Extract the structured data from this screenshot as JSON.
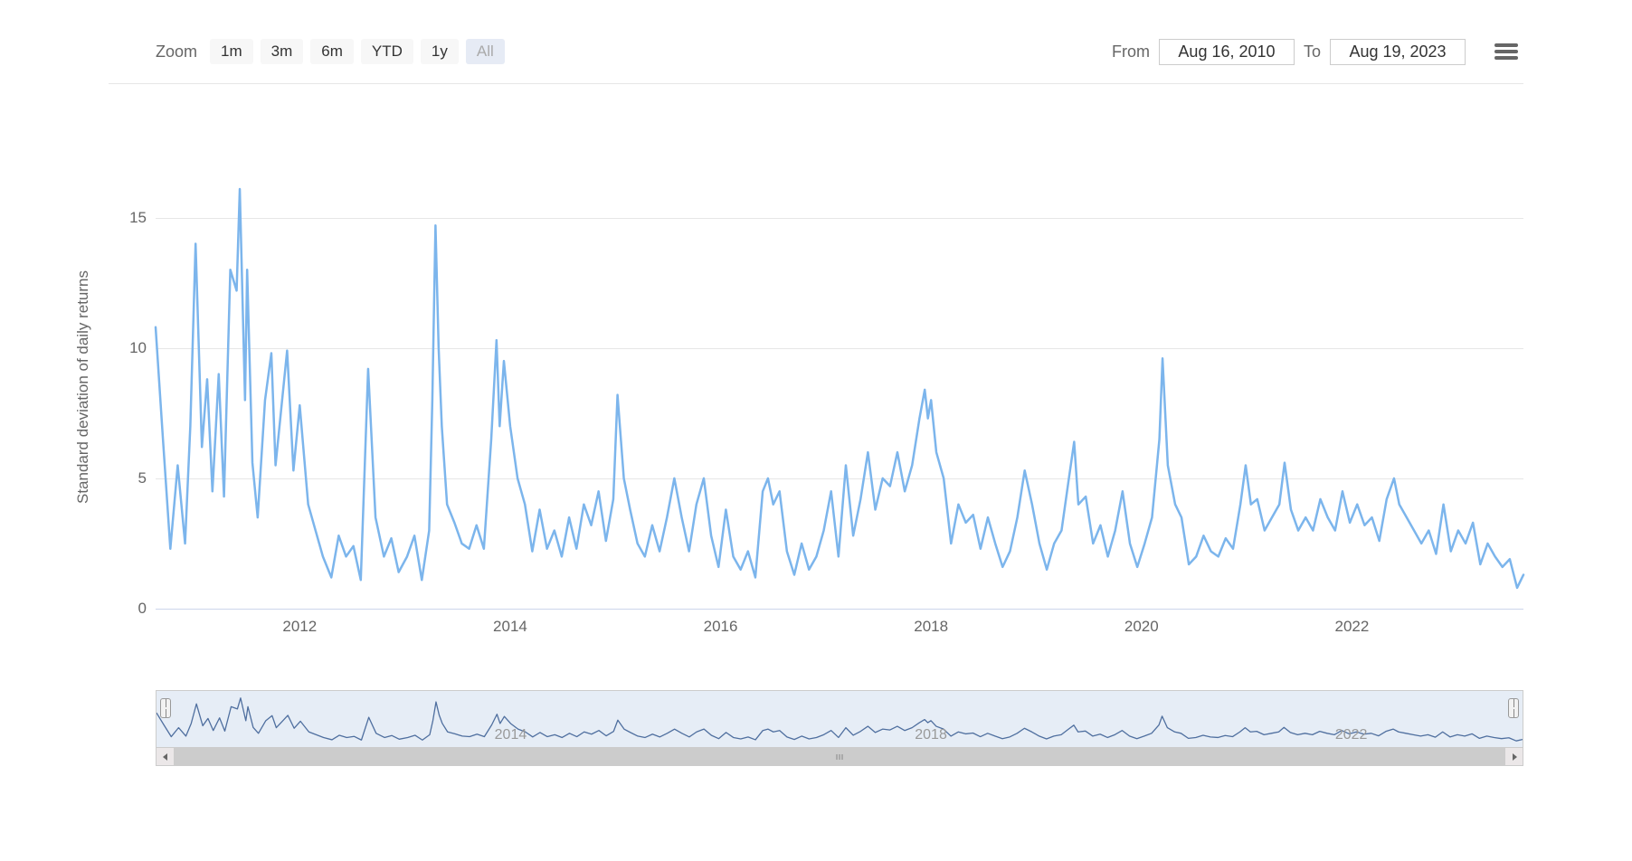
{
  "toolbar": {
    "zoom_label": "Zoom",
    "buttons": [
      {
        "label": "1m",
        "active": false
      },
      {
        "label": "3m",
        "active": false
      },
      {
        "label": "6m",
        "active": false
      },
      {
        "label": "YTD",
        "active": false
      },
      {
        "label": "1y",
        "active": false
      },
      {
        "label": "All",
        "active": true
      }
    ],
    "from_label": "From",
    "to_label": "To",
    "from_value": "Aug 16, 2010",
    "to_value": "Aug 19, 2023",
    "menu_icon_color": "#666666"
  },
  "chart": {
    "type": "line",
    "y_axis_title": "Standard deviation of daily returns",
    "ylim": [
      0,
      17
    ],
    "yticks": [
      0,
      5,
      10,
      15
    ],
    "xlim_year": [
      2010.63,
      2023.63
    ],
    "xticks_year": [
      2012,
      2014,
      2016,
      2018,
      2020,
      2022
    ],
    "grid_color": "#e6e6e6",
    "axis_line_color": "#ccd6eb",
    "background_color": "#ffffff",
    "label_color": "#666666",
    "label_fontsize": 17,
    "series": {
      "color": "#7cb5ec",
      "line_width": 2.5,
      "points": [
        [
          2010.63,
          10.8
        ],
        [
          2010.7,
          6.5
        ],
        [
          2010.77,
          2.3
        ],
        [
          2010.84,
          5.5
        ],
        [
          2010.91,
          2.5
        ],
        [
          2010.96,
          7.0
        ],
        [
          2011.01,
          14.0
        ],
        [
          2011.07,
          6.2
        ],
        [
          2011.12,
          8.8
        ],
        [
          2011.17,
          4.5
        ],
        [
          2011.23,
          9.0
        ],
        [
          2011.28,
          4.3
        ],
        [
          2011.34,
          13.0
        ],
        [
          2011.4,
          12.2
        ],
        [
          2011.43,
          16.1
        ],
        [
          2011.48,
          8.0
        ],
        [
          2011.5,
          13.0
        ],
        [
          2011.55,
          5.6
        ],
        [
          2011.6,
          3.5
        ],
        [
          2011.67,
          8.0
        ],
        [
          2011.73,
          9.8
        ],
        [
          2011.77,
          5.5
        ],
        [
          2011.82,
          7.5
        ],
        [
          2011.88,
          9.9
        ],
        [
          2011.94,
          5.3
        ],
        [
          2012.0,
          7.8
        ],
        [
          2012.08,
          4.0
        ],
        [
          2012.15,
          3.0
        ],
        [
          2012.22,
          2.0
        ],
        [
          2012.3,
          1.2
        ],
        [
          2012.37,
          2.8
        ],
        [
          2012.44,
          2.0
        ],
        [
          2012.51,
          2.4
        ],
        [
          2012.58,
          1.1
        ],
        [
          2012.65,
          9.2
        ],
        [
          2012.72,
          3.5
        ],
        [
          2012.8,
          2.0
        ],
        [
          2012.87,
          2.7
        ],
        [
          2012.94,
          1.4
        ],
        [
          2013.02,
          2.0
        ],
        [
          2013.09,
          2.8
        ],
        [
          2013.16,
          1.1
        ],
        [
          2013.23,
          3.0
        ],
        [
          2013.26,
          8.0
        ],
        [
          2013.29,
          14.7
        ],
        [
          2013.32,
          10.0
        ],
        [
          2013.35,
          7.0
        ],
        [
          2013.4,
          4.0
        ],
        [
          2013.47,
          3.3
        ],
        [
          2013.54,
          2.5
        ],
        [
          2013.61,
          2.3
        ],
        [
          2013.68,
          3.2
        ],
        [
          2013.75,
          2.3
        ],
        [
          2013.82,
          6.5
        ],
        [
          2013.87,
          10.3
        ],
        [
          2013.9,
          7.0
        ],
        [
          2013.94,
          9.5
        ],
        [
          2014.0,
          7.0
        ],
        [
          2014.07,
          5.0
        ],
        [
          2014.14,
          4.0
        ],
        [
          2014.21,
          2.2
        ],
        [
          2014.28,
          3.8
        ],
        [
          2014.35,
          2.3
        ],
        [
          2014.42,
          3.0
        ],
        [
          2014.49,
          2.0
        ],
        [
          2014.56,
          3.5
        ],
        [
          2014.63,
          2.3
        ],
        [
          2014.7,
          4.0
        ],
        [
          2014.77,
          3.2
        ],
        [
          2014.84,
          4.5
        ],
        [
          2014.91,
          2.6
        ],
        [
          2014.98,
          4.2
        ],
        [
          2015.02,
          8.2
        ],
        [
          2015.08,
          5.0
        ],
        [
          2015.14,
          3.8
        ],
        [
          2015.21,
          2.5
        ],
        [
          2015.28,
          2.0
        ],
        [
          2015.35,
          3.2
        ],
        [
          2015.42,
          2.2
        ],
        [
          2015.49,
          3.5
        ],
        [
          2015.56,
          5.0
        ],
        [
          2015.63,
          3.5
        ],
        [
          2015.7,
          2.2
        ],
        [
          2015.77,
          4.0
        ],
        [
          2015.84,
          5.0
        ],
        [
          2015.91,
          2.8
        ],
        [
          2015.98,
          1.6
        ],
        [
          2016.05,
          3.8
        ],
        [
          2016.12,
          2.0
        ],
        [
          2016.19,
          1.5
        ],
        [
          2016.26,
          2.2
        ],
        [
          2016.33,
          1.2
        ],
        [
          2016.4,
          4.5
        ],
        [
          2016.45,
          5.0
        ],
        [
          2016.5,
          4.0
        ],
        [
          2016.56,
          4.5
        ],
        [
          2016.63,
          2.2
        ],
        [
          2016.7,
          1.3
        ],
        [
          2016.77,
          2.5
        ],
        [
          2016.84,
          1.5
        ],
        [
          2016.91,
          2.0
        ],
        [
          2016.98,
          3.0
        ],
        [
          2017.05,
          4.5
        ],
        [
          2017.12,
          2.0
        ],
        [
          2017.19,
          5.5
        ],
        [
          2017.26,
          2.8
        ],
        [
          2017.33,
          4.2
        ],
        [
          2017.4,
          6.0
        ],
        [
          2017.47,
          3.8
        ],
        [
          2017.54,
          5.0
        ],
        [
          2017.61,
          4.7
        ],
        [
          2017.68,
          6.0
        ],
        [
          2017.75,
          4.5
        ],
        [
          2017.82,
          5.5
        ],
        [
          2017.89,
          7.3
        ],
        [
          2017.94,
          8.4
        ],
        [
          2017.97,
          7.3
        ],
        [
          2018.0,
          8.0
        ],
        [
          2018.05,
          6.0
        ],
        [
          2018.12,
          5.0
        ],
        [
          2018.19,
          2.5
        ],
        [
          2018.26,
          4.0
        ],
        [
          2018.33,
          3.3
        ],
        [
          2018.4,
          3.6
        ],
        [
          2018.47,
          2.3
        ],
        [
          2018.54,
          3.5
        ],
        [
          2018.61,
          2.5
        ],
        [
          2018.68,
          1.6
        ],
        [
          2018.75,
          2.2
        ],
        [
          2018.82,
          3.5
        ],
        [
          2018.89,
          5.3
        ],
        [
          2018.96,
          4.0
        ],
        [
          2019.03,
          2.5
        ],
        [
          2019.1,
          1.5
        ],
        [
          2019.17,
          2.5
        ],
        [
          2019.24,
          3.0
        ],
        [
          2019.31,
          5.0
        ],
        [
          2019.36,
          6.4
        ],
        [
          2019.4,
          4.0
        ],
        [
          2019.47,
          4.3
        ],
        [
          2019.54,
          2.5
        ],
        [
          2019.61,
          3.2
        ],
        [
          2019.68,
          2.0
        ],
        [
          2019.75,
          3.0
        ],
        [
          2019.82,
          4.5
        ],
        [
          2019.89,
          2.5
        ],
        [
          2019.96,
          1.6
        ],
        [
          2020.03,
          2.5
        ],
        [
          2020.1,
          3.5
        ],
        [
          2020.17,
          6.5
        ],
        [
          2020.2,
          9.6
        ],
        [
          2020.25,
          5.5
        ],
        [
          2020.32,
          4.0
        ],
        [
          2020.38,
          3.5
        ],
        [
          2020.45,
          1.7
        ],
        [
          2020.52,
          2.0
        ],
        [
          2020.59,
          2.8
        ],
        [
          2020.66,
          2.2
        ],
        [
          2020.73,
          2.0
        ],
        [
          2020.8,
          2.7
        ],
        [
          2020.87,
          2.3
        ],
        [
          2020.94,
          4.0
        ],
        [
          2020.99,
          5.5
        ],
        [
          2021.04,
          4.0
        ],
        [
          2021.1,
          4.2
        ],
        [
          2021.17,
          3.0
        ],
        [
          2021.24,
          3.5
        ],
        [
          2021.31,
          4.0
        ],
        [
          2021.36,
          5.6
        ],
        [
          2021.42,
          3.8
        ],
        [
          2021.49,
          3.0
        ],
        [
          2021.56,
          3.5
        ],
        [
          2021.63,
          3.0
        ],
        [
          2021.7,
          4.2
        ],
        [
          2021.77,
          3.5
        ],
        [
          2021.84,
          3.0
        ],
        [
          2021.91,
          4.5
        ],
        [
          2021.98,
          3.3
        ],
        [
          2022.05,
          4.0
        ],
        [
          2022.12,
          3.2
        ],
        [
          2022.19,
          3.5
        ],
        [
          2022.26,
          2.6
        ],
        [
          2022.33,
          4.2
        ],
        [
          2022.4,
          5.0
        ],
        [
          2022.45,
          4.0
        ],
        [
          2022.52,
          3.5
        ],
        [
          2022.59,
          3.0
        ],
        [
          2022.66,
          2.5
        ],
        [
          2022.73,
          3.0
        ],
        [
          2022.8,
          2.1
        ],
        [
          2022.87,
          4.0
        ],
        [
          2022.94,
          2.2
        ],
        [
          2023.01,
          3.0
        ],
        [
          2023.08,
          2.5
        ],
        [
          2023.15,
          3.3
        ],
        [
          2023.22,
          1.7
        ],
        [
          2023.29,
          2.5
        ],
        [
          2023.36,
          2.0
        ],
        [
          2023.43,
          1.6
        ],
        [
          2023.5,
          1.9
        ],
        [
          2023.57,
          0.8
        ],
        [
          2023.63,
          1.3
        ]
      ]
    }
  },
  "navigator": {
    "background_color": "#b8cce4",
    "background_opacity": 0.35,
    "outline_color": "#cccccc",
    "series_color": "#4f6f9f",
    "series_width": 1.3,
    "xticks_year": [
      2014,
      2018,
      2022
    ],
    "handle_fill": "#f2f2f2",
    "handle_border": "#999999"
  }
}
